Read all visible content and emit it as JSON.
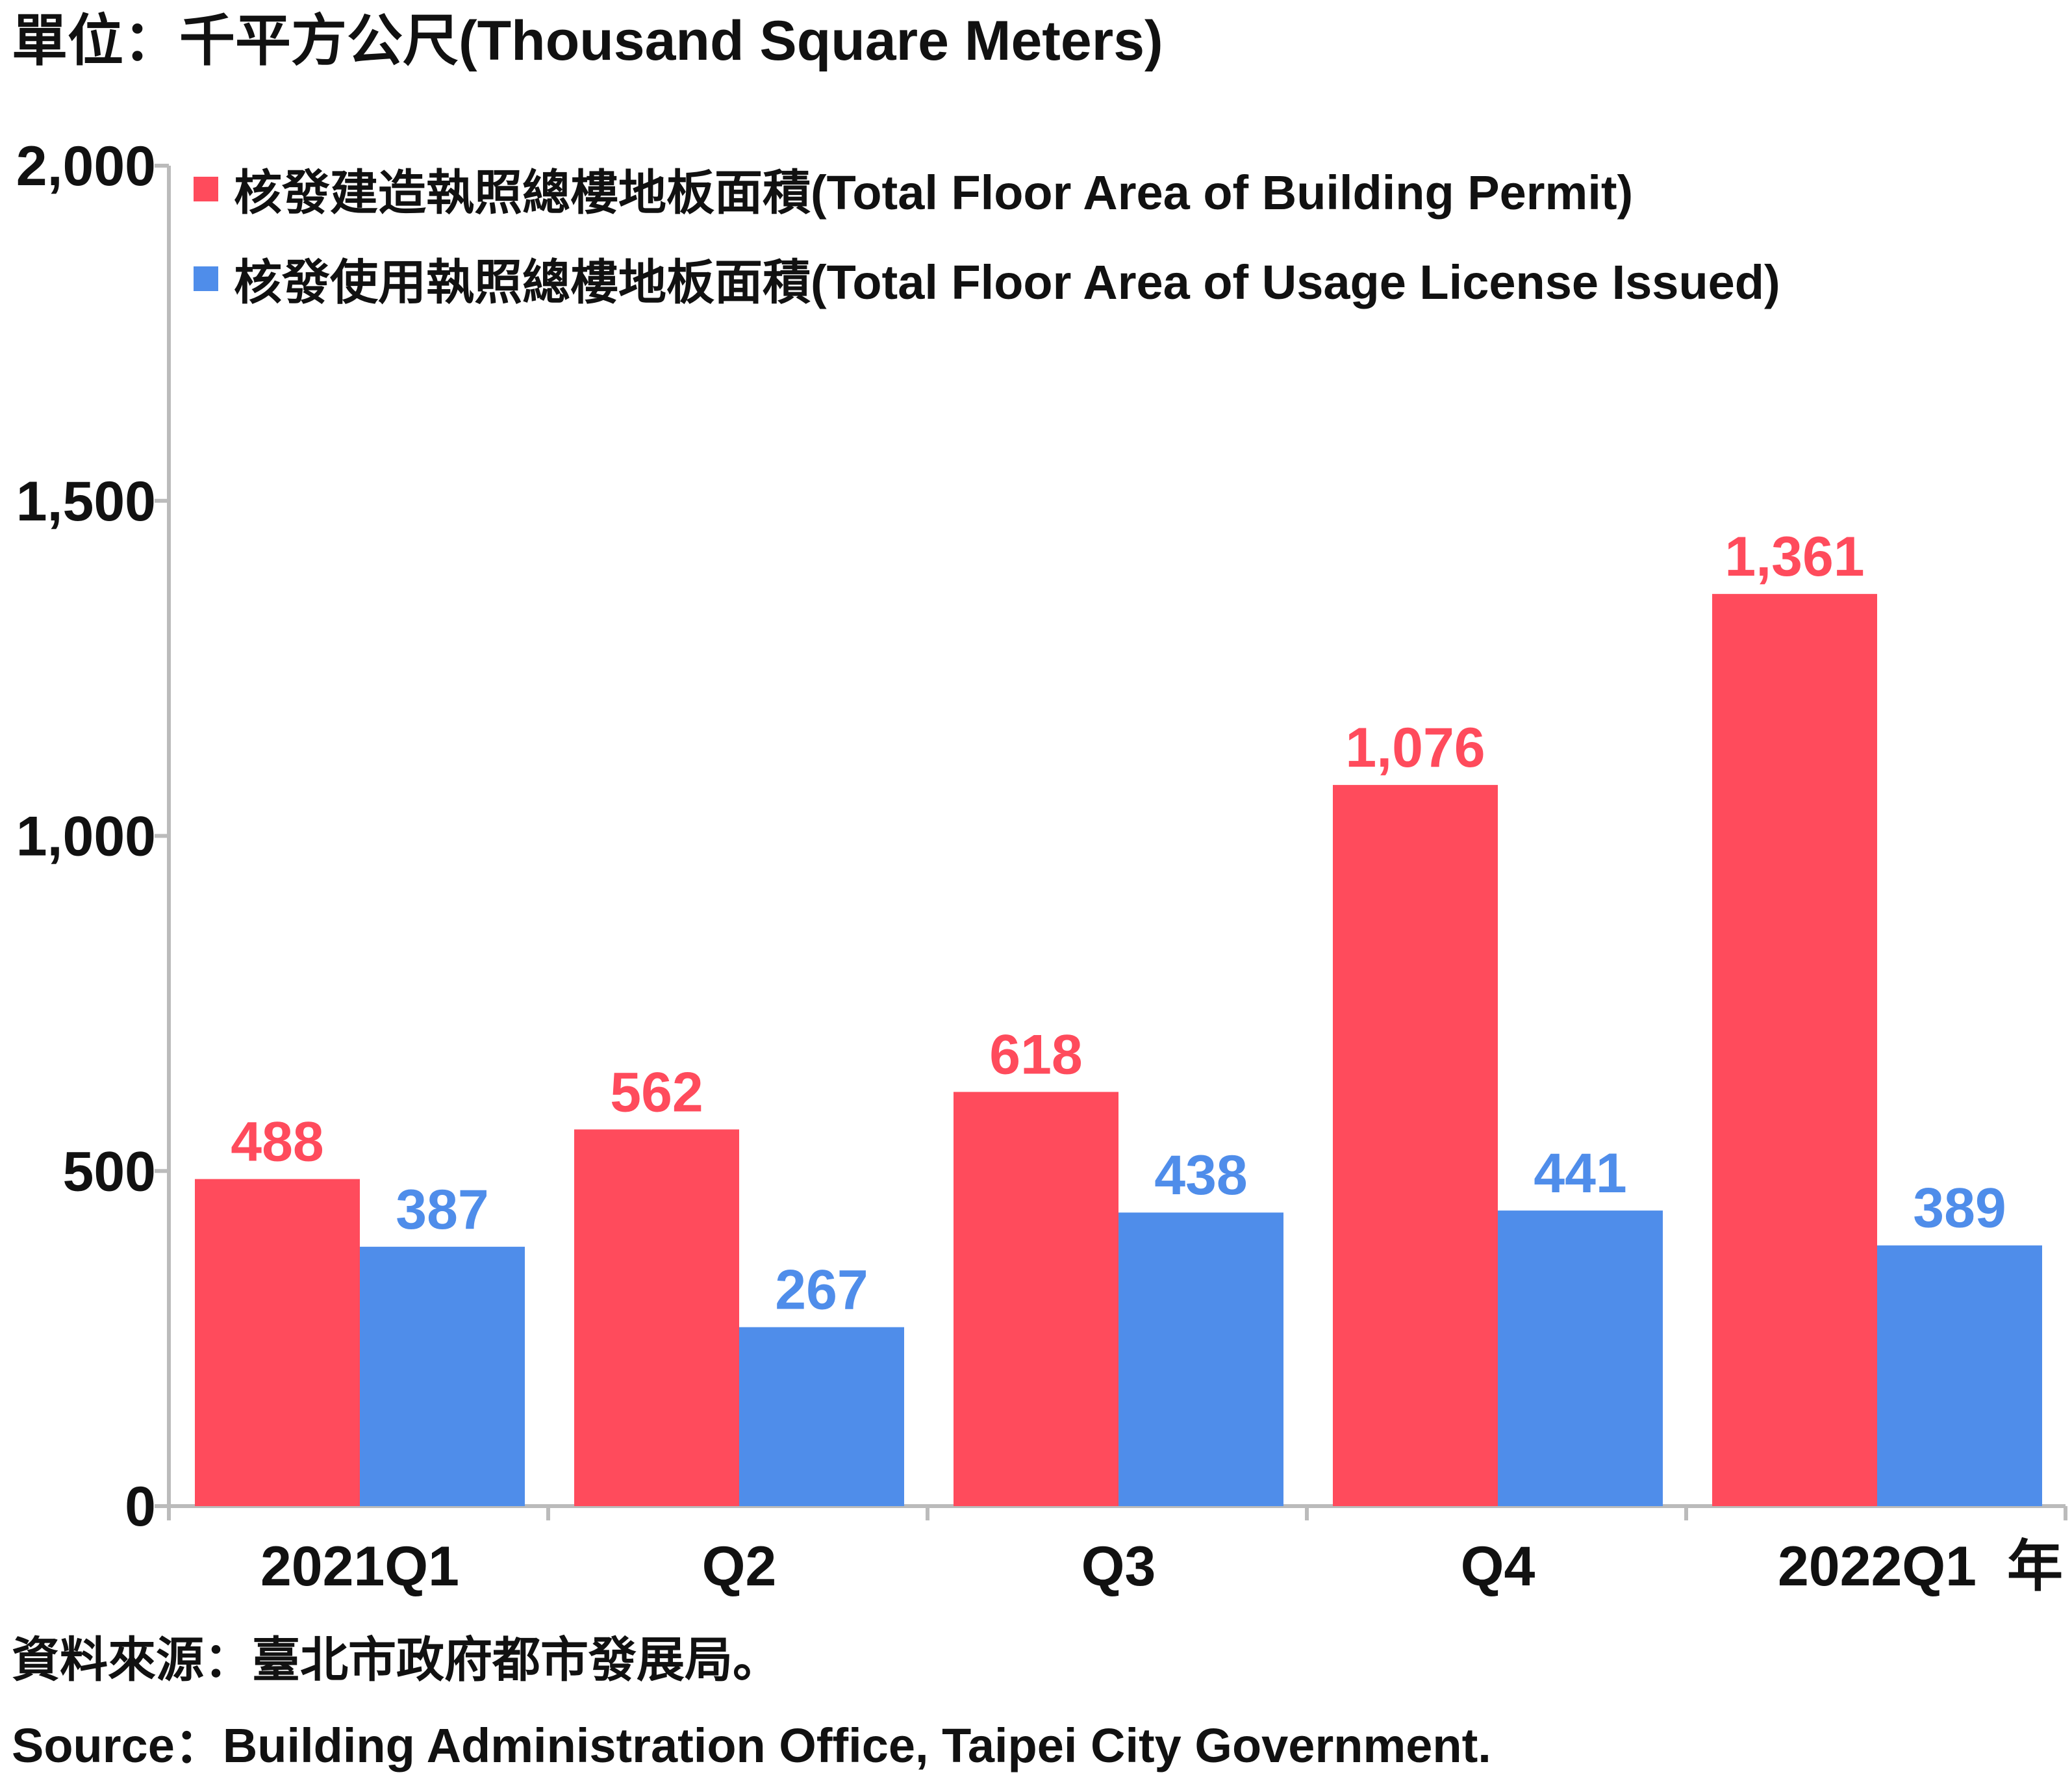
{
  "unit_label": "單位：千平方公尺(Thousand Square Meters)",
  "source_zh": "資料來源：臺北市政府都市發展局。",
  "source_en": "Source：Building Administration Office, Taipei City Government.",
  "x_unit": "年",
  "colors": {
    "permit": "#FF4B5C",
    "usage": "#4F8DEA",
    "axis": "#BBBBBB",
    "text": "#111111"
  },
  "chart_data": {
    "type": "bar",
    "categories": [
      "2021Q1",
      "Q2",
      "Q3",
      "Q4",
      "2022Q1"
    ],
    "series": [
      {
        "name": "核發建造執照總樓地板面積(Total Floor Area of Building Permit)",
        "values": [
          488,
          562,
          618,
          1076,
          1361
        ],
        "labels": [
          "488",
          "562",
          "618",
          "1,076",
          "1,361"
        ]
      },
      {
        "name": "核發使用執照總樓地板面積(Total Floor Area of Usage License Issued)",
        "values": [
          387,
          267,
          438,
          441,
          389
        ],
        "labels": [
          "387",
          "267",
          "438",
          "441",
          "389"
        ]
      }
    ],
    "ylim": [
      0,
      2000
    ],
    "yticks": [
      0,
      500,
      1000,
      1500,
      2000
    ],
    "ytick_labels": [
      "0",
      "500",
      "1,000",
      "1,500",
      "2,000"
    ],
    "legend": "top-left",
    "grid": false
  }
}
